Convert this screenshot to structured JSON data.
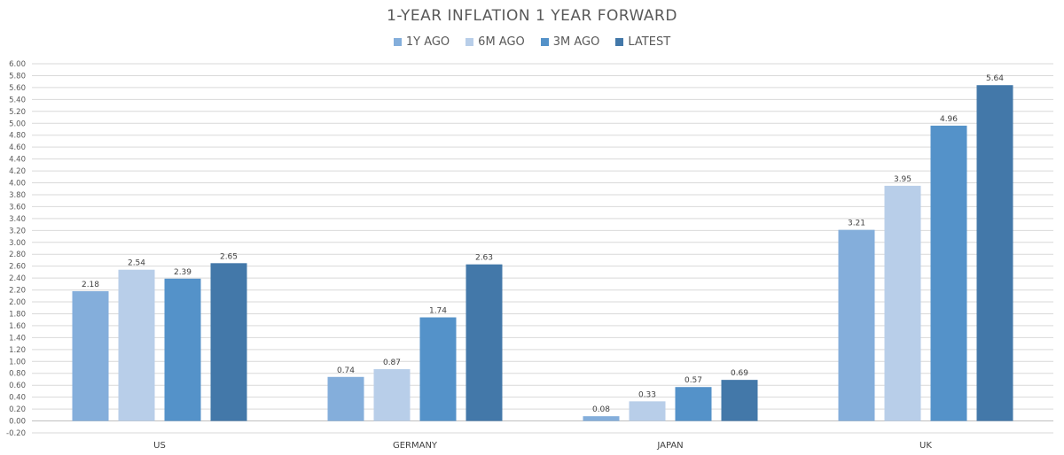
{
  "chart_data": {
    "type": "bar",
    "title": "1-YEAR INFLATION 1 YEAR FORWARD",
    "xlabel": "",
    "ylabel": "",
    "categories": [
      "US",
      "GERMANY",
      "JAPAN",
      "UK"
    ],
    "series": [
      {
        "name": "1Y AGO",
        "color": "#84AEDB",
        "values": [
          2.18,
          0.74,
          0.08,
          3.21
        ]
      },
      {
        "name": "6M AGO",
        "color": "#B8CEE9",
        "values": [
          2.54,
          0.87,
          0.33,
          3.95
        ]
      },
      {
        "name": "3M AGO",
        "color": "#5492C9",
        "values": [
          2.39,
          1.74,
          0.57,
          4.96
        ]
      },
      {
        "name": "LATEST",
        "color": "#4378A9",
        "values": [
          2.65,
          2.63,
          0.69,
          5.64
        ]
      }
    ],
    "ylim": [
      -0.2,
      6.0
    ],
    "ytick_step": 0.2,
    "grid": true,
    "legend_position": "top-center"
  }
}
